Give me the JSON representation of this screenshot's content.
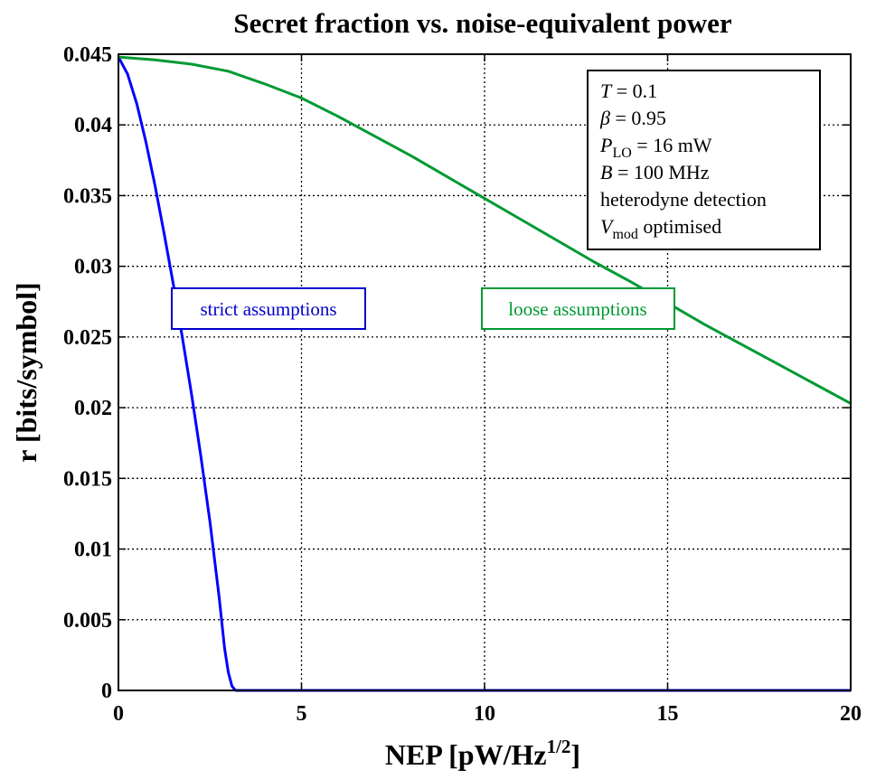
{
  "chart_data": {
    "type": "line",
    "title": "Secret fraction vs. noise-equivalent power",
    "xlabel": "NEP [pW/Hz",
    "xlabel_sup": "1/2",
    "xlabel_end": "]",
    "ylabel": "r [bits/symbol]",
    "xlim": [
      0,
      20
    ],
    "ylim": [
      0,
      0.045
    ],
    "xticks": [
      0,
      5,
      10,
      15,
      20
    ],
    "xtick_labels": [
      "0",
      "5",
      "10",
      "15",
      "20"
    ],
    "yticks": [
      0,
      0.005,
      0.01,
      0.015,
      0.02,
      0.025,
      0.03,
      0.035,
      0.04,
      0.045
    ],
    "ytick_labels": [
      "0",
      "0.005",
      "0.01",
      "0.015",
      "0.02",
      "0.025",
      "0.03",
      "0.035",
      "0.04",
      "0.045"
    ],
    "grid": true,
    "series": [
      {
        "color": "#0000ff",
        "x": [
          0,
          0.25,
          0.5,
          0.75,
          1.0,
          1.25,
          1.5,
          1.75,
          2.0,
          2.25,
          2.5,
          2.75,
          2.9,
          3.0,
          3.1,
          3.2,
          5,
          10,
          15,
          20
        ],
        "y": [
          0.0448,
          0.0436,
          0.0415,
          0.0388,
          0.0357,
          0.0323,
          0.0287,
          0.0249,
          0.0209,
          0.0166,
          0.0119,
          0.0066,
          0.003,
          0.0013,
          0.0003,
          0,
          0,
          0,
          0,
          0
        ]
      },
      {
        "color": "#009933",
        "x": [
          0,
          1,
          2,
          3,
          4,
          5,
          6,
          7,
          8,
          9,
          10,
          11,
          12,
          13,
          14,
          15,
          16,
          17,
          18,
          19,
          20
        ],
        "y": [
          0.0448,
          0.0446,
          0.0443,
          0.0438,
          0.0429,
          0.0419,
          0.0406,
          0.0392,
          0.0378,
          0.0363,
          0.0348,
          0.0333,
          0.0318,
          0.0303,
          0.0289,
          0.0274,
          0.0259,
          0.0245,
          0.0231,
          0.0217,
          0.0203
        ]
      }
    ],
    "annotations": {
      "strict": {
        "text": "strict assumptions",
        "color": "#0000cc"
      },
      "loose": {
        "text": "loose assumptions",
        "color": "#009933"
      }
    },
    "parameters": {
      "T_sym": "T",
      "T_val": " = 0.1",
      "beta_sym": "β",
      "beta_val": " = 0.95",
      "plo_sym": "P",
      "plo_sub": "LO",
      "plo_val": " = 16 mW",
      "b_sym": "B",
      "b_val": " = 100 MHz",
      "detection": "heterodyne detection",
      "vmod_sym": "V",
      "vmod_sub": "mod",
      "vmod_val": " optimised"
    }
  }
}
